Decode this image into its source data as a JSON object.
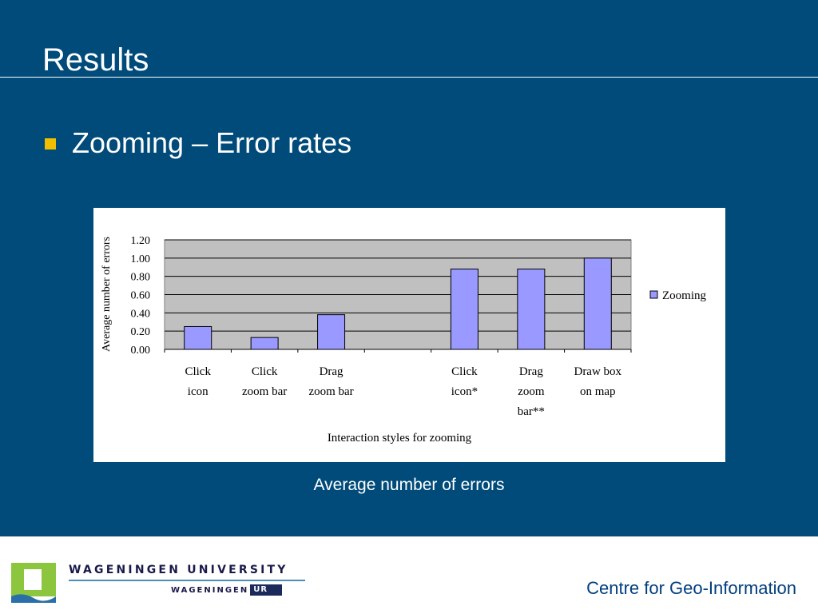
{
  "slide": {
    "title": "Results",
    "bullet": "Zooming – Error rates",
    "caption": "Average number of errors"
  },
  "footer": {
    "university": "WAGENINGEN UNIVERSITY",
    "ur_name": "WAGENINGEN",
    "ur_box": "UR",
    "centre": "Centre for Geo-Information"
  },
  "colors": {
    "background": "#004b7a",
    "accent": "#f0c000",
    "bar_fill": "#9999ff",
    "plot_area": "#c0c0c0"
  },
  "chart_data": {
    "type": "bar",
    "categories": [
      [
        "Click",
        "icon"
      ],
      [
        "Click",
        "zoom bar"
      ],
      [
        "Drag",
        "zoom bar"
      ],
      [],
      [
        "Click",
        "icon*"
      ],
      [
        "Drag",
        "zoom",
        "bar**"
      ],
      [
        "Draw box",
        "on map"
      ]
    ],
    "values": [
      0.25,
      0.13,
      0.38,
      null,
      0.88,
      0.88,
      1.0
    ],
    "yticks": [
      "1.20",
      "1.00",
      "0.80",
      "0.60",
      "0.40",
      "0.20",
      "0.00"
    ],
    "ylim": [
      0,
      1.2
    ],
    "xlabel": "Interaction styles for zooming",
    "ylabel": "Average number of errors",
    "legend": [
      "Zooming"
    ],
    "legend_position": "right",
    "grid": true
  }
}
